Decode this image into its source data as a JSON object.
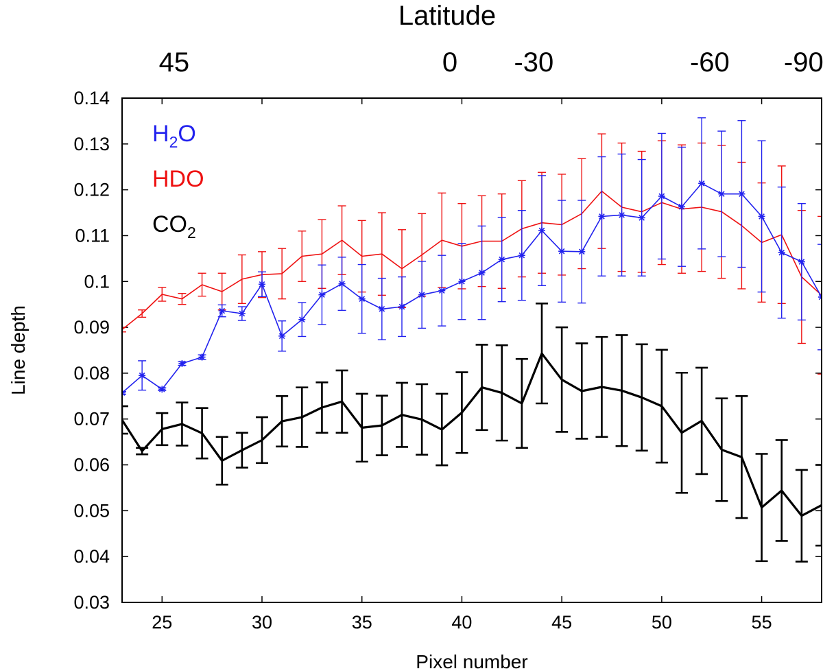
{
  "chart_data": {
    "type": "line",
    "title": "",
    "xlabel": "Pixel number",
    "ylabel": "Line depth",
    "top_axis_title": "Latitude",
    "xlim": [
      23,
      58
    ],
    "ylim": [
      0.03,
      0.14
    ],
    "x_ticks": [
      25,
      30,
      35,
      40,
      45,
      50,
      55
    ],
    "x_tick_labels": [
      "25",
      "30",
      "35",
      "40",
      "45",
      "50",
      "55"
    ],
    "y_ticks": [
      0.03,
      0.04,
      0.05,
      0.06,
      0.07,
      0.08,
      0.09,
      0.1,
      0.11,
      0.12,
      0.13,
      0.14
    ],
    "y_tick_labels": [
      "0.03",
      "0.04",
      "0.05",
      "0.06",
      "0.07",
      "0.08",
      "0.09",
      "0.1",
      "0.11",
      "0.12",
      "0.13",
      "0.14"
    ],
    "top_ticks": [
      {
        "label": "45",
        "x": 23.2
      },
      {
        "label": "0",
        "x": 37.0
      },
      {
        "label": "-30",
        "x": 41.2
      },
      {
        "label": "-60",
        "x": 50.0
      },
      {
        "label": "-90",
        "x": 54.7
      }
    ],
    "legend": [
      {
        "name": "H2O",
        "base": "H",
        "sub": "2",
        "suffix": "O",
        "color": "#2222ee"
      },
      {
        "name": "HDO",
        "base": "HDO",
        "sub": "",
        "suffix": "",
        "color": "#ee1111"
      },
      {
        "name": "CO2",
        "base": "CO",
        "sub": "2",
        "suffix": "",
        "color": "#000000"
      }
    ],
    "series": [
      {
        "name": "HDO",
        "color": "#ee1111",
        "marker": "none",
        "x": [
          23,
          24,
          25,
          26,
          27,
          28,
          29,
          30,
          31,
          32,
          33,
          34,
          35,
          36,
          37,
          38,
          39,
          40,
          41,
          42,
          43,
          44,
          45,
          46,
          47,
          48,
          49,
          50,
          51,
          52,
          53,
          54,
          55,
          56,
          57,
          58
        ],
        "values": [
          0.0895,
          0.093,
          0.0972,
          0.0962,
          0.0993,
          0.0978,
          0.1005,
          0.1015,
          0.1017,
          0.1055,
          0.106,
          0.109,
          0.1055,
          0.106,
          0.1028,
          0.1058,
          0.109,
          0.1077,
          0.1088,
          0.1088,
          0.1115,
          0.1128,
          0.1124,
          0.1148,
          0.1197,
          0.1162,
          0.1152,
          0.1172,
          0.1158,
          0.1162,
          0.1152,
          0.1122,
          0.1085,
          0.1102,
          0.101,
          0.097
        ],
        "errors": [
          0.0005,
          0.0008,
          0.0015,
          0.0012,
          0.0025,
          0.004,
          0.0053,
          0.005,
          0.0055,
          0.0055,
          0.0075,
          0.0075,
          0.0078,
          0.009,
          0.0085,
          0.009,
          0.0103,
          0.0093,
          0.0099,
          0.0103,
          0.0105,
          0.011,
          0.011,
          0.012,
          0.0125,
          0.014,
          0.0132,
          0.0135,
          0.014,
          0.014,
          0.0145,
          0.0138,
          0.013,
          0.015,
          0.0145,
          0.0172
        ]
      },
      {
        "name": "H2O",
        "color": "#2222ee",
        "marker": "star",
        "x": [
          23,
          24,
          25,
          26,
          27,
          28,
          29,
          30,
          31,
          32,
          33,
          34,
          35,
          36,
          37,
          38,
          39,
          40,
          41,
          42,
          43,
          44,
          45,
          46,
          47,
          48,
          49,
          50,
          51,
          52,
          53,
          54,
          55,
          56,
          57,
          58
        ],
        "values": [
          0.0757,
          0.0795,
          0.0765,
          0.0821,
          0.0835,
          0.0936,
          0.093,
          0.0994,
          0.0881,
          0.0917,
          0.0971,
          0.0995,
          0.0962,
          0.094,
          0.0945,
          0.0971,
          0.098,
          0.1,
          0.1019,
          0.1048,
          0.1057,
          0.1111,
          0.1066,
          0.1065,
          0.1142,
          0.1145,
          0.1139,
          0.1186,
          0.1163,
          0.1214,
          0.1191,
          0.1191,
          0.1142,
          0.1063,
          0.1043,
          0.0966
        ],
        "errors": [
          0.0003,
          0.0032,
          0.0003,
          0.0004,
          0.0005,
          0.0013,
          0.0015,
          0.0027,
          0.0033,
          0.0037,
          0.0065,
          0.0058,
          0.0075,
          0.0067,
          0.0065,
          0.0073,
          0.0077,
          0.0083,
          0.0102,
          0.0092,
          0.0098,
          0.012,
          0.0111,
          0.0112,
          0.013,
          0.0133,
          0.0127,
          0.0137,
          0.013,
          0.0143,
          0.0137,
          0.016,
          0.0165,
          0.0143,
          0.0127,
          0.0115
        ]
      },
      {
        "name": "CO2",
        "color": "#000000",
        "marker": "none",
        "x": [
          23,
          24,
          25,
          26,
          27,
          28,
          29,
          30,
          31,
          32,
          33,
          34,
          35,
          36,
          37,
          38,
          39,
          40,
          41,
          42,
          43,
          44,
          45,
          46,
          47,
          48,
          49,
          50,
          51,
          52,
          53,
          54,
          55,
          56,
          57,
          58
        ],
        "values": [
          0.0698,
          0.063,
          0.0678,
          0.0689,
          0.0669,
          0.0609,
          0.0632,
          0.0654,
          0.0695,
          0.0704,
          0.0725,
          0.0738,
          0.0681,
          0.0686,
          0.0709,
          0.0699,
          0.0677,
          0.0714,
          0.0769,
          0.0757,
          0.0734,
          0.0843,
          0.0786,
          0.0761,
          0.077,
          0.0762,
          0.0747,
          0.0728,
          0.067,
          0.0696,
          0.0633,
          0.0617,
          0.0507,
          0.0544,
          0.0489,
          0.0512
        ],
        "errors": [
          0.003,
          0.0007,
          0.0035,
          0.0047,
          0.0055,
          0.0052,
          0.0038,
          0.005,
          0.0055,
          0.0065,
          0.0055,
          0.0068,
          0.0074,
          0.0065,
          0.007,
          0.0077,
          0.0078,
          0.0088,
          0.0093,
          0.0104,
          0.0097,
          0.0109,
          0.0114,
          0.0104,
          0.0109,
          0.0121,
          0.0116,
          0.0123,
          0.0131,
          0.0116,
          0.0112,
          0.0133,
          0.0117,
          0.011,
          0.01,
          0.0088
        ]
      }
    ]
  }
}
